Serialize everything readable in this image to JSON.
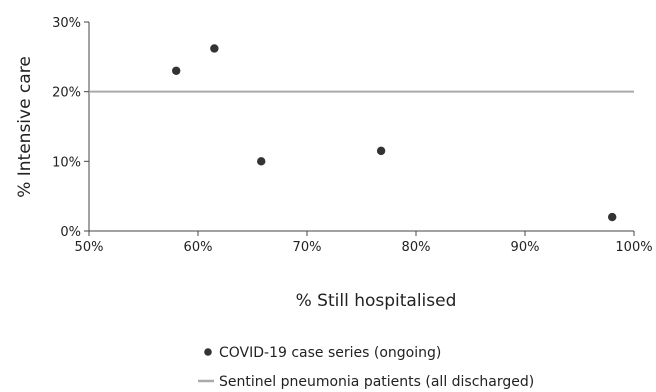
{
  "chart_data": {
    "type": "scatter",
    "title": "",
    "xlabel": "% Still hospitalised",
    "ylabel": "% Intensive care",
    "xlim": [
      50,
      100
    ],
    "ylim": [
      0,
      30
    ],
    "x_ticks": [
      "50%",
      "60%",
      "70%",
      "80%",
      "90%",
      "100%"
    ],
    "y_ticks": [
      "0%",
      "10%",
      "20%",
      "30%"
    ],
    "grid": false,
    "legend_position": "bottom",
    "series": [
      {
        "name": "COVID-19 case series (ongoing)",
        "kind": "points",
        "color": "#333333",
        "points": [
          {
            "x": 58.0,
            "y": 23.0
          },
          {
            "x": 61.5,
            "y": 26.2
          },
          {
            "x": 65.8,
            "y": 10.0
          },
          {
            "x": 76.8,
            "y": 11.5
          },
          {
            "x": 98.0,
            "y": 2.0
          }
        ]
      },
      {
        "name": "Sentinel pneumonia patients (all discharged)",
        "kind": "reference-line",
        "color": "#aaaaaa",
        "y": 20
      }
    ]
  }
}
